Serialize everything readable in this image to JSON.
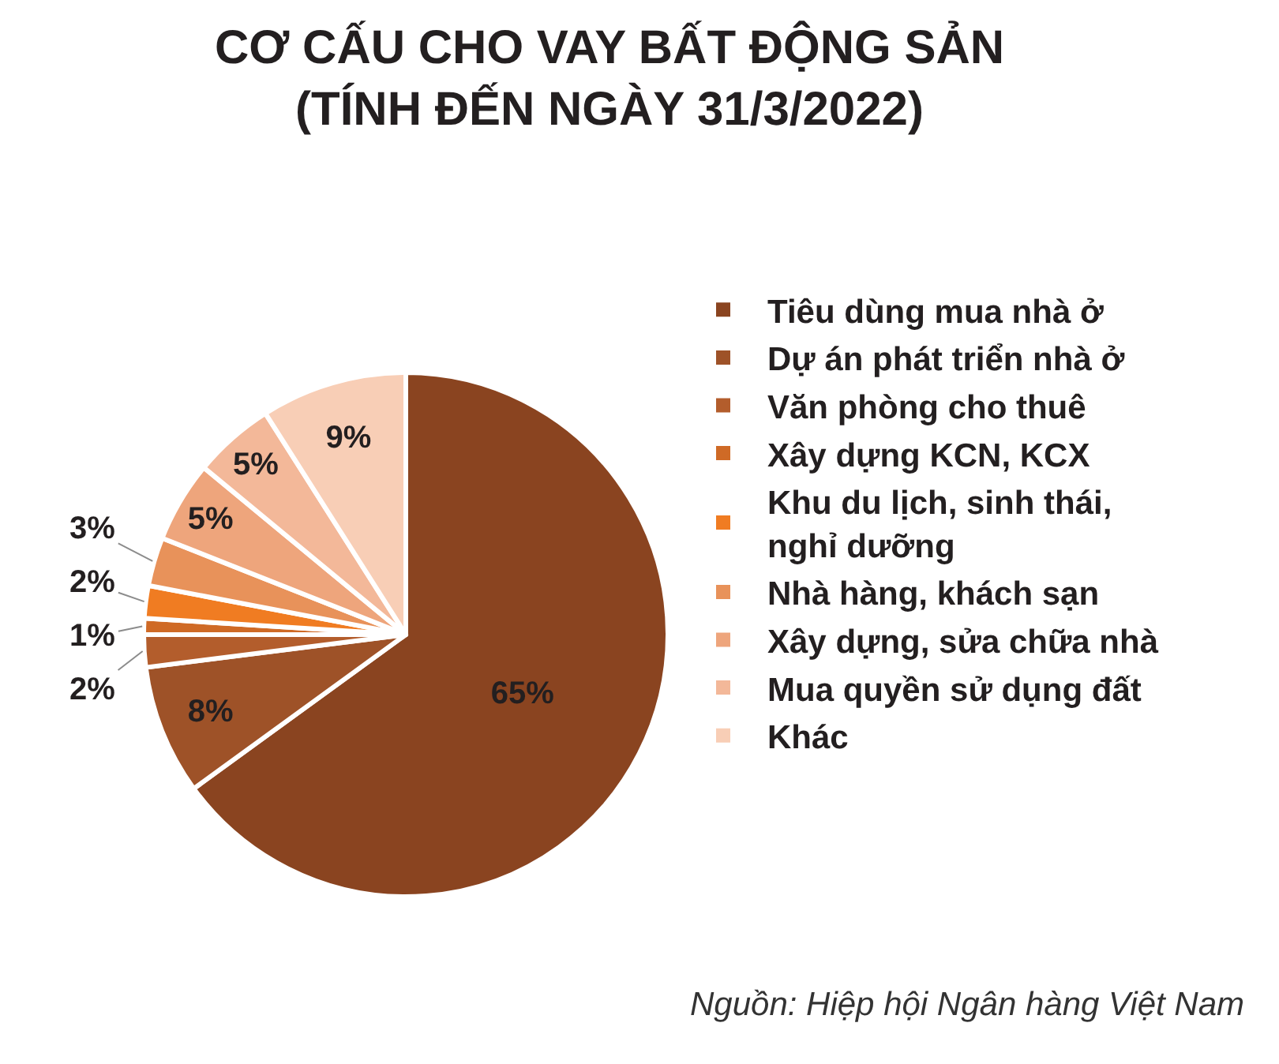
{
  "chart_data": {
    "type": "pie",
    "title": "CƠ CẤU CHO VAY BẤT ĐỘNG SẢN\n(TÍNH ĐẾN NGÀY 31/3/2022)",
    "categories": [
      "Tiêu dùng mua nhà ở",
      "Dự án phát triển nhà ở",
      "Văn phòng cho thuê",
      "Xây dựng KCN, KCX",
      "Khu du lịch, sinh thái, nghỉ dưỡng",
      "Nhà hàng, khách sạn",
      "Xây dựng, sửa chữa nhà",
      "Mua quyền sử dụng đất",
      "Khác"
    ],
    "values": [
      65,
      8,
      2,
      1,
      2,
      3,
      5,
      5,
      9
    ],
    "value_labels": [
      "65%",
      "8%",
      "2%",
      "1%",
      "2%",
      "3%",
      "5%",
      "5%",
      "9%"
    ],
    "colors": [
      "#8a4420",
      "#9e5228",
      "#b35d2c",
      "#cf6a26",
      "#f07c22",
      "#e8925a",
      "#eea57c",
      "#f3b899",
      "#f8ceb6"
    ],
    "legend": "right",
    "annotations": [
      "Nguồn: Hiệp hội Ngân hàng Việt Nam"
    ]
  }
}
